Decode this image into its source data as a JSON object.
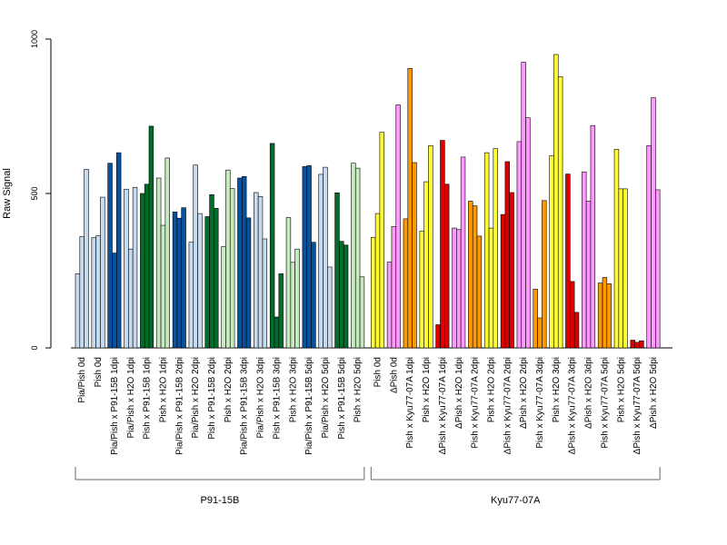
{
  "chart_data": {
    "type": "bar",
    "title": "",
    "ylabel": "Raw Signal",
    "xlabel": "",
    "ylim": [
      0,
      1000
    ],
    "yticks": [
      0,
      500,
      1000
    ],
    "grid": false,
    "bars_per_group": 3,
    "groups": [
      {
        "label": "Pia/Pish 0d",
        "color": "#c6dbef",
        "values": [
          240,
          360,
          578
        ]
      },
      {
        "label": "Pish 0d",
        "color": "#c6dbef",
        "values": [
          357,
          363,
          488
        ]
      },
      {
        "label": "Pia/Pish x P91-15B 1dpi",
        "color": "#08519c",
        "values": [
          598,
          307,
          632
        ]
      },
      {
        "label": "Pia/Pish x H2O 1dpi",
        "color": "#c6dbef",
        "values": [
          514,
          320,
          520
        ]
      },
      {
        "label": "Pish x P91-15B 1dpi",
        "color": "#006d2c",
        "values": [
          500,
          530,
          718
        ]
      },
      {
        "label": "Pish x H2O 1dpi",
        "color": "#c7e9c0",
        "values": [
          550,
          397,
          615
        ]
      },
      {
        "label": "Pia/Pish x P91-15B 2dpi",
        "color": "#08519c",
        "values": [
          440,
          420,
          454
        ]
      },
      {
        "label": "Pia/Pish x H2O 2dpi",
        "color": "#c6dbef",
        "values": [
          342,
          592,
          435
        ]
      },
      {
        "label": "Pish x P91-15B 2dpi",
        "color": "#006d2c",
        "values": [
          425,
          496,
          452
        ]
      },
      {
        "label": "Pish x H2O 2dpi",
        "color": "#c7e9c0",
        "values": [
          328,
          576,
          516
        ]
      },
      {
        "label": "Pia/Pish x P91-15B 3dpi",
        "color": "#08519c",
        "values": [
          550,
          555,
          421
        ]
      },
      {
        "label": "Pia/Pish x H2O 3dpi",
        "color": "#c6dbef",
        "values": [
          503,
          490,
          353
        ]
      },
      {
        "label": "Pish x P91-15B 3dpi",
        "color": "#006d2c",
        "values": [
          662,
          100,
          240
        ]
      },
      {
        "label": "Pish x H2O 3dpi",
        "color": "#c7e9c0",
        "values": [
          422,
          277,
          320
        ]
      },
      {
        "label": "Pia/Pish x P91-15B 5dpi",
        "color": "#08519c",
        "values": [
          587,
          590,
          342
        ]
      },
      {
        "label": "Pia/Pish x H2O 5dpi",
        "color": "#c6dbef",
        "values": [
          562,
          585,
          262
        ]
      },
      {
        "label": "Pish x P91-15B 5dpi",
        "color": "#006d2c",
        "values": [
          502,
          345,
          333
        ]
      },
      {
        "label": "Pish x H2O 5dpi",
        "color": "#c7e9c0",
        "values": [
          598,
          582,
          230
        ]
      },
      {
        "label": "Pish 0d",
        "color": "#ffff33",
        "values": [
          358,
          435,
          698
        ]
      },
      {
        "label": "ΔPish 0d",
        "color": "#ff99ff",
        "values": [
          278,
          393,
          787
        ]
      },
      {
        "label": "Pish x Kyu77-07A 1dpi",
        "color": "#ff9900",
        "values": [
          418,
          905,
          600
        ]
      },
      {
        "label": "Pish x H2O 1dpi",
        "color": "#ffff33",
        "values": [
          378,
          538,
          655
        ]
      },
      {
        "label": "ΔPish x Kyu77-07A 1dpi",
        "color": "#dd0000",
        "values": [
          75,
          672,
          530
        ]
      },
      {
        "label": "ΔPish x H2O 1dpi",
        "color": "#ff99ff",
        "values": [
          388,
          383,
          618
        ]
      },
      {
        "label": "Pish x Kyu77-07A 2dpi",
        "color": "#ff9900",
        "values": [
          475,
          460,
          362
        ]
      },
      {
        "label": "Pish x H2O 2dpi",
        "color": "#ffff33",
        "values": [
          632,
          388,
          645
        ]
      },
      {
        "label": "ΔPish x Kyu77-07A 2dpi",
        "color": "#dd0000",
        "values": [
          432,
          603,
          503
        ]
      },
      {
        "label": "ΔPish x H2O 2dpi",
        "color": "#ff99ff",
        "values": [
          668,
          925,
          745
        ]
      },
      {
        "label": "Pish x Kyu77-07A 3dpi",
        "color": "#ff9900",
        "values": [
          190,
          97,
          477
        ]
      },
      {
        "label": "Pish x H2O 3dpi",
        "color": "#ffff33",
        "values": [
          622,
          950,
          878
        ]
      },
      {
        "label": "ΔPish x Kyu77-07A 3dpi",
        "color": "#dd0000",
        "values": [
          563,
          215,
          115
        ]
      },
      {
        "label": "ΔPish x H2O 3dpi",
        "color": "#ff99ff",
        "values": [
          570,
          475,
          720
        ]
      },
      {
        "label": "Pish x Kyu77-07A 5dpi",
        "color": "#ff9900",
        "values": [
          210,
          228,
          208
        ]
      },
      {
        "label": "Pish x H2O 5dpi",
        "color": "#ffff33",
        "values": [
          643,
          515,
          515
        ]
      },
      {
        "label": "ΔPish x Kyu77-07A 5dpi",
        "color": "#dd0000",
        "values": [
          25,
          18,
          23
        ]
      },
      {
        "label": "ΔPish x H2O 5dpi",
        "color": "#ff99ff",
        "values": [
          655,
          810,
          512
        ]
      }
    ],
    "brackets": [
      {
        "label": "P91-15B",
        "from_group": 0,
        "to_group": 17
      },
      {
        "label": "Kyu77-07A",
        "from_group": 18,
        "to_group": 35
      }
    ]
  }
}
